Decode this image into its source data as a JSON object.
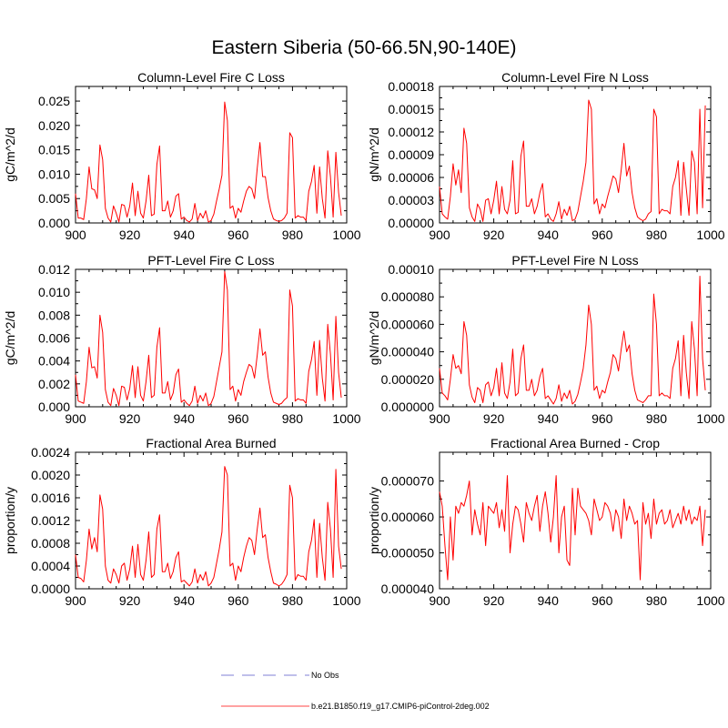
{
  "figure": {
    "title": "Eastern Siberia (50-66.5N,90-140E)"
  },
  "legend": {
    "entries": [
      {
        "label": "No Obs",
        "color": "#9999dd",
        "style": "dashed"
      },
      {
        "label": "b.e21.B1850.f19_g17.CMIP6-piControl-2deg.002",
        "color": "#ff0000",
        "style": "solid"
      }
    ]
  },
  "chart_data": [
    {
      "type": "line",
      "title": "Column-Level Fire C Loss",
      "xlabel": "",
      "ylabel": "gC/m^2/d",
      "xlim": [
        900,
        1000
      ],
      "ylim": [
        0,
        0.028
      ],
      "xticks": [
        "900",
        "920",
        "940",
        "960",
        "980",
        "1000"
      ],
      "yticks": [
        "0.000",
        "0.005",
        "0.010",
        "0.015",
        "0.020",
        "0.025"
      ],
      "yticks_values": [
        0,
        0.005,
        0.01,
        0.015,
        0.02,
        0.025
      ],
      "color": "#ff0000",
      "series": [
        {
          "name": "b.e21.B1850.f19_g17.CMIP6-piControl-2deg.002",
          "x_start": 900,
          "x_step": 1,
          "values": [
            0.006,
            0.001,
            0.001,
            0.0007,
            0.005,
            0.0115,
            0.007,
            0.0068,
            0.005,
            0.016,
            0.013,
            0.003,
            0.001,
            0.0002,
            0.0035,
            0.002,
            0.0002,
            0.0038,
            0.0036,
            0.0012,
            0.0035,
            0.0082,
            0.0015,
            0.0065,
            0.002,
            0.001,
            0.0045,
            0.0098,
            0.0015,
            0.0018,
            0.012,
            0.0158,
            0.0025,
            0.0025,
            0.0045,
            0.0012,
            0.0025,
            0.0055,
            0.006,
            0.0008,
            0.0012,
            0.0005,
            0.0002,
            0.0008,
            0.004,
            0.0005,
            0.002,
            0.001,
            0.0025,
            0.0002,
            0.0005,
            0.0018,
            0.0045,
            0.007,
            0.0098,
            0.0248,
            0.021,
            0.003,
            0.0035,
            0.001,
            0.003,
            0.0022,
            0.0045,
            0.0065,
            0.0075,
            0.007,
            0.005,
            0.0112,
            0.0165,
            0.0095,
            0.0095,
            0.0052,
            0.0025,
            0.0008,
            0.0005,
            0.0003,
            0.0005,
            0.001,
            0.002,
            0.0185,
            0.0175,
            0.001,
            0.0015,
            0.0012,
            0.0012,
            0.0005,
            0.0065,
            0.0085,
            0.0118,
            0.002,
            0.0115,
            0.005,
            0.001,
            0.0148,
            0.0095,
            0.0012,
            0.0145,
            0.0063,
            0.0015
          ]
        }
      ]
    },
    {
      "type": "line",
      "title": "Column-Level Fire N Loss",
      "xlabel": "",
      "ylabel": "gN/m^2/d",
      "xlim": [
        900,
        1000
      ],
      "ylim": [
        0,
        0.00018
      ],
      "xticks": [
        "900",
        "920",
        "940",
        "960",
        "980",
        "1000"
      ],
      "yticks": [
        "0.00000",
        "0.00003",
        "0.00006",
        "0.00009",
        "0.00012",
        "0.00015",
        "0.00018"
      ],
      "yticks_values": [
        0,
        3e-05,
        6e-05,
        9e-05,
        0.00012,
        0.00015,
        0.00018
      ],
      "color": "#ff0000",
      "series": [
        {
          "name": "b.e21.B1850.f19_g17.CMIP6-piControl-2deg.002",
          "x_start": 900,
          "x_step": 1,
          "values": [
            4.8e-05,
            1.2e-05,
            8e-06,
            5e-06,
            3.5e-05,
            7.8e-05,
            5e-05,
            7e-05,
            4e-05,
            0.000125,
            0.000105,
            2e-05,
            8e-06,
            2e-06,
            2.5e-05,
            1.8e-05,
            2e-06,
            3e-05,
            3.2e-05,
            1.2e-05,
            3e-05,
            5.5e-05,
            1.2e-05,
            4.8e-05,
            1.8e-05,
            1.2e-05,
            3e-05,
            8.2e-05,
            1.2e-05,
            1.4e-05,
            8.8e-05,
            0.000108,
            2.2e-05,
            2.2e-05,
            3.2e-05,
            1.2e-05,
            2.2e-05,
            4e-05,
            5.2e-05,
            8e-06,
            1.2e-05,
            5e-06,
            2e-06,
            1.2e-05,
            2.8e-05,
            5e-06,
            1.8e-05,
            1e-05,
            2.2e-05,
            3e-06,
            5e-06,
            1.5e-05,
            3.5e-05,
            5.5e-05,
            8e-05,
            0.000162,
            0.00015,
            2.5e-05,
            3.2e-05,
            1.2e-05,
            2.5e-05,
            2e-05,
            3.5e-05,
            4.8e-05,
            6.2e-05,
            5.8e-05,
            4e-05,
            7e-05,
            0.000105,
            6.2e-05,
            7.5e-05,
            4e-05,
            2e-05,
            8e-06,
            5e-06,
            3e-06,
            5e-06,
            1.2e-05,
            1.5e-05,
            0.00015,
            0.00014,
            1.2e-05,
            1.8e-05,
            1.6e-05,
            1.6e-05,
            1.2e-05,
            4.8e-05,
            6e-05,
            8.2e-05,
            1e-05,
            8e-05,
            4.5e-05,
            1e-05,
            9.5e-05,
            8e-05,
            1.2e-05,
            0.00015,
            2e-05,
            0.000155
          ]
        }
      ]
    },
    {
      "type": "line",
      "title": "PFT-Level Fire C Loss",
      "xlabel": "",
      "ylabel": "gC/m^2/d",
      "xlim": [
        900,
        1000
      ],
      "ylim": [
        0,
        0.012
      ],
      "xticks": [
        "900",
        "920",
        "940",
        "960",
        "980",
        "1000"
      ],
      "yticks": [
        "0.000",
        "0.002",
        "0.004",
        "0.006",
        "0.008",
        "0.010",
        "0.012"
      ],
      "yticks_values": [
        0,
        0.002,
        0.004,
        0.006,
        0.008,
        0.01,
        0.012
      ],
      "color": "#ff0000",
      "series": [
        {
          "name": "b.e21.B1850.f19_g17.CMIP6-piControl-2deg.002",
          "x_start": 900,
          "x_step": 1,
          "values": [
            0.0028,
            0.0005,
            0.0004,
            0.0003,
            0.0022,
            0.0052,
            0.0034,
            0.0035,
            0.0025,
            0.008,
            0.0065,
            0.0015,
            0.0004,
            0.0001,
            0.0016,
            0.001,
            0.0001,
            0.0018,
            0.0017,
            0.0006,
            0.0016,
            0.0036,
            0.0008,
            0.0035,
            0.001,
            0.0005,
            0.0022,
            0.0045,
            0.0008,
            0.001,
            0.0052,
            0.0069,
            0.0012,
            0.0012,
            0.0022,
            0.0006,
            0.0012,
            0.0028,
            0.0033,
            0.0004,
            0.0006,
            0.0003,
            0.0001,
            0.0005,
            0.0018,
            0.0003,
            0.001,
            0.0005,
            0.0012,
            0.0001,
            0.0003,
            0.0009,
            0.0022,
            0.0035,
            0.0048,
            0.0118,
            0.0102,
            0.0015,
            0.0018,
            0.0005,
            0.0015,
            0.001,
            0.0022,
            0.003,
            0.0037,
            0.0035,
            0.0025,
            0.0045,
            0.0068,
            0.0045,
            0.0048,
            0.0026,
            0.0012,
            0.0004,
            0.0003,
            0.0002,
            0.0003,
            0.0006,
            0.0008,
            0.0102,
            0.0088,
            0.0005,
            0.0007,
            0.0006,
            0.0006,
            0.0003,
            0.0031,
            0.0041,
            0.0057,
            0.001,
            0.0058,
            0.0025,
            0.0005,
            0.0072,
            0.0046,
            0.0006,
            0.0079,
            0.003,
            0.0008
          ]
        }
      ]
    },
    {
      "type": "line",
      "title": "PFT-Level Fire N Loss",
      "xlabel": "",
      "ylabel": "gN/m^2/d",
      "xlim": [
        900,
        1000
      ],
      "ylim": [
        0,
        0.0001
      ],
      "xticks": [
        "900",
        "920",
        "940",
        "960",
        "980",
        "1000"
      ],
      "yticks": [
        "0.000000",
        "0.000020",
        "0.000040",
        "0.000060",
        "0.000080",
        "0.00010"
      ],
      "yticks_values": [
        0,
        2e-05,
        4e-05,
        6e-05,
        8e-05,
        0.0001
      ],
      "color": "#ff0000",
      "series": [
        {
          "name": "b.e21.B1850.f19_g17.CMIP6-piControl-2deg.002",
          "x_start": 900,
          "x_step": 1,
          "values": [
            2.8e-05,
            1e-05,
            8e-06,
            5e-06,
            2e-05,
            3.8e-05,
            2.8e-05,
            3e-05,
            2.4e-05,
            6.2e-05,
            5.2e-05,
            1.6e-05,
            7e-06,
            3e-06,
            1.4e-05,
            1.2e-05,
            3e-06,
            1.6e-05,
            1.8e-05,
            8e-06,
            1.4e-05,
            2.8e-05,
            8e-06,
            3.2e-05,
            1e-05,
            6e-06,
            1.8e-05,
            4.2e-05,
            8e-06,
            1e-05,
            3.5e-05,
            4.5e-05,
            1.2e-05,
            1.2e-05,
            2e-05,
            8e-06,
            1.2e-05,
            2.2e-05,
            2.8e-05,
            6e-06,
            8e-06,
            5e-06,
            2e-06,
            6e-06,
            1.6e-05,
            4e-06,
            1e-05,
            6e-06,
            1.2e-05,
            2e-06,
            4e-06,
            9e-06,
            1.8e-05,
            2.8e-05,
            4.5e-05,
            7.4e-05,
            6e-05,
            1.2e-05,
            1.5e-05,
            6e-06,
            1.2e-05,
            1e-05,
            1.8e-05,
            2.5e-05,
            3.8e-05,
            3.5e-05,
            2.6e-05,
            4.2e-05,
            5.5e-05,
            4e-05,
            4.5e-05,
            2.4e-05,
            1.2e-05,
            5e-06,
            4e-06,
            3e-06,
            5e-06,
            8e-06,
            8e-06,
            8.2e-05,
            6e-05,
            8e-06,
            1e-05,
            8e-06,
            8e-06,
            6e-06,
            2.8e-05,
            3.5e-05,
            4.8e-05,
            8e-06,
            5.2e-05,
            2.5e-05,
            6e-06,
            6.2e-05,
            4.2e-05,
            8e-06,
            9.5e-05,
            3.5e-05,
            1.2e-05
          ]
        }
      ]
    },
    {
      "type": "line",
      "title": "Fractional Area Burned",
      "xlabel": "",
      "ylabel": "proportion/y",
      "xlim": [
        900,
        1000
      ],
      "ylim": [
        0,
        0.0024
      ],
      "xticks": [
        "900",
        "920",
        "940",
        "960",
        "980",
        "1000"
      ],
      "yticks": [
        "0.0000",
        "0.0004",
        "0.0008",
        "0.0012",
        "0.0016",
        "0.0020",
        "0.0024"
      ],
      "yticks_values": [
        0,
        0.0004,
        0.0008,
        0.0012,
        0.0016,
        0.002,
        0.0024
      ],
      "color": "#ff0000",
      "series": [
        {
          "name": "b.e21.B1850.f19_g17.CMIP6-piControl-2deg.002",
          "x_start": 900,
          "x_step": 1,
          "values": [
            0.0006,
            0.0002,
            0.00018,
            0.00012,
            0.0005,
            0.00105,
            0.0007,
            0.0009,
            0.00065,
            0.00165,
            0.0014,
            0.0004,
            0.00015,
            0.0001,
            0.00035,
            0.00025,
            0.0001,
            0.0004,
            0.00045,
            0.00015,
            0.00035,
            0.00075,
            0.0002,
            0.00078,
            0.00025,
            0.00015,
            0.0005,
            0.001,
            0.0002,
            0.00025,
            0.00105,
            0.0013,
            0.0003,
            0.0003,
            0.00045,
            0.00018,
            0.0003,
            0.00055,
            0.00065,
            0.00012,
            0.00015,
            0.0001,
            5e-05,
            0.00012,
            0.00035,
            0.0001,
            0.00025,
            0.00015,
            0.0003,
            5e-05,
            0.0001,
            0.0002,
            0.00045,
            0.0007,
            0.001,
            0.00215,
            0.002,
            0.0004,
            0.00045,
            0.00015,
            0.0004,
            0.0003,
            0.00055,
            0.00075,
            0.0009,
            0.00085,
            0.0006,
            0.00105,
            0.00142,
            0.0009,
            0.00095,
            0.00055,
            0.0003,
            0.0001,
            8e-05,
            5e-05,
            8e-05,
            0.00015,
            0.00025,
            0.00182,
            0.0016,
            0.00015,
            0.00025,
            0.00022,
            0.00022,
            0.00015,
            0.00065,
            0.00085,
            0.00122,
            0.0002,
            0.00115,
            0.00055,
            0.00015,
            0.00152,
            0.00105,
            0.0002,
            0.0021,
            0.00075,
            0.00035
          ]
        }
      ]
    },
    {
      "type": "line",
      "title": "Fractional Area Burned - Crop",
      "xlabel": "",
      "ylabel": "proportion/y",
      "xlim": [
        900,
        1000
      ],
      "ylim": [
        4e-05,
        7.8e-05
      ],
      "xticks": [
        "900",
        "920",
        "940",
        "960",
        "980",
        "1000"
      ],
      "yticks": [
        "0.000040",
        "0.000050",
        "0.000060",
        "0.000070"
      ],
      "yticks_values": [
        4e-05,
        5e-05,
        6e-05,
        7e-05
      ],
      "color": "#ff0000",
      "series": [
        {
          "name": "b.e21.B1850.f19_g17.CMIP6-piControl-2deg.002",
          "x_start": 900,
          "x_step": 1,
          "values": [
            6.7e-05,
            6.3e-05,
            5.2e-05,
            4.25e-05,
            6e-05,
            4.8e-05,
            6.3e-05,
            6.1e-05,
            6.4e-05,
            6.3e-05,
            6.6e-05,
            7e-05,
            5.5e-05,
            6.2e-05,
            5.8e-05,
            5.5e-05,
            6.4e-05,
            5.2e-05,
            6.3e-05,
            6.2e-05,
            6.1e-05,
            6.4e-05,
            5.7e-05,
            6.2e-05,
            5.6e-05,
            7.15e-05,
            5e-05,
            5.8e-05,
            6.3e-05,
            6.2e-05,
            5.8e-05,
            5.3e-05,
            6.4e-05,
            6.1e-05,
            5.9e-05,
            6.3e-05,
            6.6e-05,
            5.6e-05,
            6.3e-05,
            6.7e-05,
            6.1e-05,
            5.3e-05,
            6e-05,
            7.15e-05,
            5e-05,
            6e-05,
            6.3e-05,
            4.8e-05,
            4.65e-05,
            6.8e-05,
            5.5e-05,
            6.8e-05,
            6.3e-05,
            6.2e-05,
            6.1e-05,
            5.9e-05,
            5.5e-05,
            6.5e-05,
            6.2e-05,
            5.9e-05,
            6e-05,
            6.4e-05,
            6.3e-05,
            6.1e-05,
            5.6e-05,
            6.2e-05,
            6e-05,
            5.4e-05,
            6.5e-05,
            5.9e-05,
            6.3e-05,
            6.1e-05,
            5.8e-05,
            5.9e-05,
            4.25e-05,
            6.4e-05,
            5.8e-05,
            6.1e-05,
            5.4e-05,
            6.5e-05,
            5.8e-05,
            6.1e-05,
            6.2e-05,
            5.8e-05,
            5.9e-05,
            6.2e-05,
            5.7e-05,
            5.9e-05,
            6.1e-05,
            5.8e-05,
            6.3e-05,
            5.9e-05,
            6.2e-05,
            5.8e-05,
            6e-05,
            5.9e-05,
            6.3e-05,
            5.2e-05,
            6.2e-05
          ]
        }
      ]
    }
  ]
}
